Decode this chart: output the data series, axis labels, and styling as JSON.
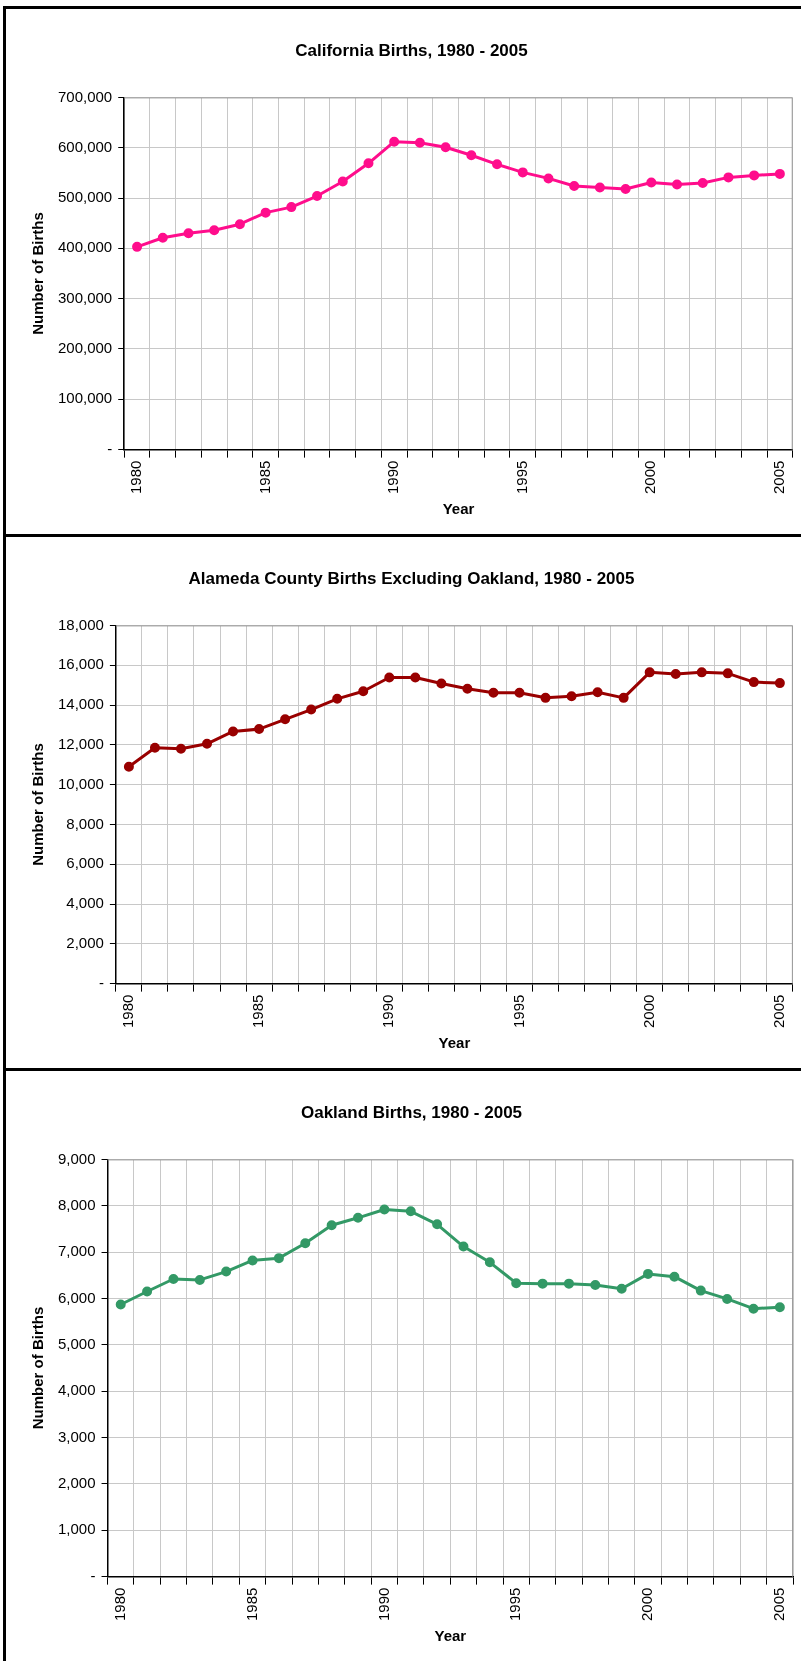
{
  "chart_data": [
    {
      "type": "line",
      "title": "California Births, 1980 - 2005",
      "xlabel": "Year",
      "ylabel": "Number of Births",
      "categories": [
        "1980",
        null,
        null,
        null,
        null,
        "1985",
        null,
        null,
        null,
        null,
        "1990",
        null,
        null,
        null,
        null,
        "1995",
        null,
        null,
        null,
        null,
        "2000",
        null,
        null,
        null,
        null,
        "2005"
      ],
      "series": [
        {
          "color": "#ff0d8c",
          "values": [
            403000,
            421000,
            430000,
            436000,
            448000,
            471000,
            482000,
            504000,
            533000,
            569000,
            612000,
            610000,
            601000,
            585000,
            567000,
            551000,
            539000,
            524000,
            521000,
            518000,
            531000,
            527000,
            530000,
            541000,
            545000,
            548000
          ]
        }
      ],
      "ylim": [
        0,
        700000
      ],
      "yticks": [
        {
          "value": 0,
          "label": "-"
        },
        {
          "value": 100000,
          "label": "100,000"
        },
        {
          "value": 200000,
          "label": "200,000"
        },
        {
          "value": 300000,
          "label": "300,000"
        },
        {
          "value": 400000,
          "label": "400,000"
        },
        {
          "value": 500000,
          "label": "500,000"
        },
        {
          "value": 600000,
          "label": "600,000"
        },
        {
          "value": 700000,
          "label": "700,000"
        }
      ],
      "grid": true,
      "marker": "circle"
    },
    {
      "type": "line",
      "title": "Alameda County Births Excluding Oakland, 1980 - 2005",
      "xlabel": "Year",
      "ylabel": "Number of Births",
      "categories": [
        "1980",
        null,
        null,
        null,
        null,
        "1985",
        null,
        null,
        null,
        null,
        "1990",
        null,
        null,
        null,
        null,
        "1995",
        null,
        null,
        null,
        null,
        "2000",
        null,
        null,
        null,
        null,
        "2005"
      ],
      "series": [
        {
          "color": "#990000",
          "values": [
            10900,
            11850,
            11800,
            12050,
            12670,
            12790,
            13280,
            13770,
            14310,
            14690,
            15380,
            15380,
            15080,
            14820,
            14620,
            14620,
            14360,
            14440,
            14640,
            14360,
            15640,
            15560,
            15640,
            15590,
            15150,
            15100
          ]
        }
      ],
      "ylim": [
        0,
        18000
      ],
      "yticks": [
        {
          "value": 0,
          "label": "-"
        },
        {
          "value": 2000,
          "label": "2,000"
        },
        {
          "value": 4000,
          "label": "4,000"
        },
        {
          "value": 6000,
          "label": "6,000"
        },
        {
          "value": 8000,
          "label": "8,000"
        },
        {
          "value": 10000,
          "label": "10,000"
        },
        {
          "value": 12000,
          "label": "12,000"
        },
        {
          "value": 14000,
          "label": "14,000"
        },
        {
          "value": 16000,
          "label": "16,000"
        },
        {
          "value": 18000,
          "label": "18,000"
        }
      ],
      "grid": true,
      "marker": "circle"
    },
    {
      "type": "line",
      "title": "Oakland Births, 1980 - 2005",
      "xlabel": "Year",
      "ylabel": "Number of Births",
      "categories": [
        "1980",
        null,
        null,
        null,
        null,
        "1985",
        null,
        null,
        null,
        null,
        "1990",
        null,
        null,
        null,
        null,
        "1995",
        null,
        null,
        null,
        null,
        "2000",
        null,
        null,
        null,
        null,
        "2005"
      ],
      "series": [
        {
          "color": "#339966",
          "values": [
            5870,
            6150,
            6420,
            6400,
            6580,
            6820,
            6870,
            7190,
            7580,
            7740,
            7920,
            7880,
            7600,
            7120,
            6780,
            6330,
            6320,
            6320,
            6290,
            6210,
            6530,
            6470,
            6170,
            5990,
            5780,
            5810
          ]
        }
      ],
      "ylim": [
        0,
        9000
      ],
      "yticks": [
        {
          "value": 0,
          "label": "-"
        },
        {
          "value": 1000,
          "label": "1,000"
        },
        {
          "value": 2000,
          "label": "2,000"
        },
        {
          "value": 3000,
          "label": "3,000"
        },
        {
          "value": 4000,
          "label": "4,000"
        },
        {
          "value": 5000,
          "label": "5,000"
        },
        {
          "value": 6000,
          "label": "6,000"
        },
        {
          "value": 7000,
          "label": "7,000"
        },
        {
          "value": 8000,
          "label": "8,000"
        },
        {
          "value": 9000,
          "label": "9,000"
        }
      ],
      "grid": true,
      "marker": "circle"
    }
  ]
}
